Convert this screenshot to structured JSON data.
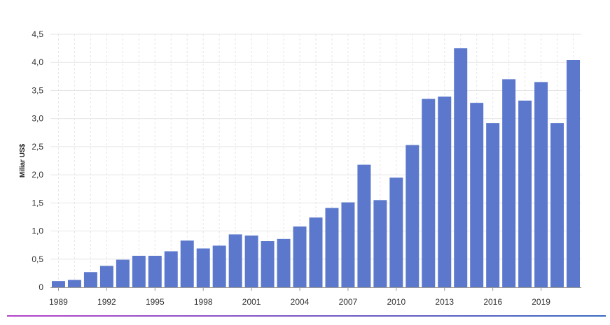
{
  "chart_data": {
    "type": "bar",
    "ylabel": "Miliar US$",
    "xlabel": "",
    "title": "",
    "ylim": [
      0,
      4.5
    ],
    "y_ticks": [
      "0",
      "0,5",
      "1,0",
      "1,5",
      "2,0",
      "2,5",
      "3,0",
      "3,5",
      "4,0",
      "4,5"
    ],
    "x_ticks": [
      "1989",
      "1992",
      "1995",
      "1998",
      "2001",
      "2004",
      "2007",
      "2010",
      "2013",
      "2016",
      "2019"
    ],
    "grid": true,
    "legend": "none",
    "categories": [
      1989,
      1990,
      1991,
      1992,
      1993,
      1994,
      1995,
      1996,
      1997,
      1998,
      1999,
      2000,
      2001,
      2002,
      2003,
      2004,
      2005,
      2006,
      2007,
      2008,
      2009,
      2010,
      2011,
      2012,
      2013,
      2014,
      2015,
      2016,
      2017,
      2018,
      2019,
      2020,
      2021
    ],
    "values": [
      0.11,
      0.13,
      0.27,
      0.38,
      0.49,
      0.56,
      0.56,
      0.64,
      0.83,
      0.69,
      0.74,
      0.94,
      0.92,
      0.82,
      0.86,
      1.08,
      1.24,
      1.41,
      1.51,
      2.18,
      1.55,
      1.95,
      2.53,
      3.35,
      3.39,
      4.25,
      3.28,
      2.92,
      3.7,
      3.32,
      3.65,
      2.92,
      4.04
    ]
  },
  "colors": {
    "bar": "#5b78cd",
    "grid": "#e6e6e6",
    "axis": "#999999",
    "bottom_gradient_start": "#b544c8",
    "bottom_gradient_end": "#3a6ac0"
  }
}
